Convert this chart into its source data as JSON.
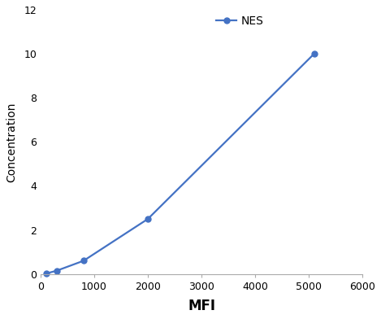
{
  "x": [
    100,
    300,
    800,
    2000,
    5100
  ],
  "y": [
    0.02,
    0.15,
    0.6,
    2.5,
    10.0
  ],
  "line_color": "#4472c4",
  "marker": "o",
  "marker_size": 5,
  "marker_edge_width": 1.0,
  "line_width": 1.6,
  "label": "NES",
  "xlabel": "MFI",
  "ylabel": "Concentration",
  "xlim": [
    0,
    6000
  ],
  "ylim": [
    0,
    12
  ],
  "xticks": [
    0,
    1000,
    2000,
    3000,
    4000,
    5000,
    6000
  ],
  "yticks": [
    0,
    2,
    4,
    6,
    8,
    10,
    12
  ],
  "xlabel_fontsize": 12,
  "ylabel_fontsize": 10,
  "tick_fontsize": 9,
  "legend_fontsize": 10,
  "spine_color": "#aaaaaa",
  "background_color": "#ffffff",
  "figsize": [
    4.69,
    3.92
  ],
  "dpi": 100
}
